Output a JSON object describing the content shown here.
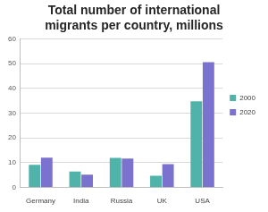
{
  "chart_data": {
    "type": "bar",
    "title": "Total number of international migrants per country, millions",
    "categories": [
      "Germany",
      "India",
      "Russia",
      "UK",
      "USA"
    ],
    "series": [
      {
        "name": "2000",
        "color": "#4fb3a9",
        "values": [
          9.1,
          6.4,
          11.9,
          4.7,
          34.8
        ]
      },
      {
        "name": "2020",
        "color": "#7b72d0",
        "values": [
          12.0,
          5.1,
          11.6,
          9.4,
          50.6
        ]
      }
    ],
    "ylim": [
      0,
      60
    ],
    "yticks": [
      0,
      10,
      20,
      30,
      40,
      50,
      60
    ],
    "grid": true,
    "legend": "right"
  }
}
